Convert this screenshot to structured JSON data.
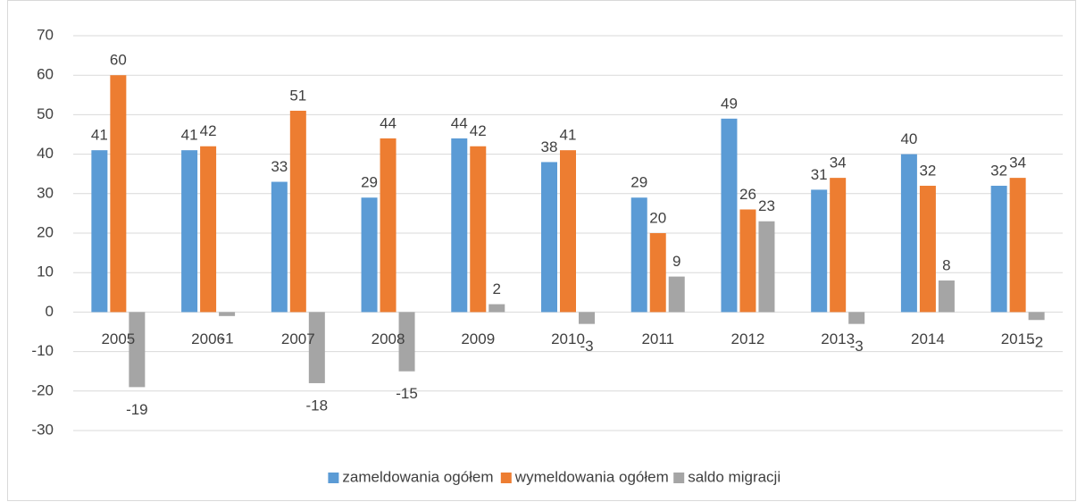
{
  "chart_data": {
    "type": "bar",
    "categories": [
      "2005",
      "2006",
      "2007",
      "2008",
      "2009",
      "2010",
      "2011",
      "2012",
      "2013",
      "2014",
      "2015"
    ],
    "series": [
      {
        "name": "zameldowania ogółem",
        "color": "#5b9bd5",
        "values": [
          41,
          41,
          33,
          29,
          44,
          38,
          29,
          49,
          31,
          40,
          32
        ]
      },
      {
        "name": "wymeldowania ogółem",
        "color": "#ed7d31",
        "values": [
          60,
          42,
          51,
          44,
          42,
          41,
          20,
          26,
          34,
          32,
          34
        ]
      },
      {
        "name": "saldo migracji",
        "color": "#a5a5a5",
        "values": [
          -19,
          -1,
          -18,
          -15,
          2,
          -3,
          9,
          23,
          -3,
          8,
          -2
        ]
      }
    ],
    "ylim": [
      -30,
      70
    ],
    "yticks": [
      -30,
      -20,
      -10,
      0,
      10,
      20,
      30,
      40,
      50,
      60,
      70
    ],
    "grid": true,
    "legend": "bottom"
  }
}
